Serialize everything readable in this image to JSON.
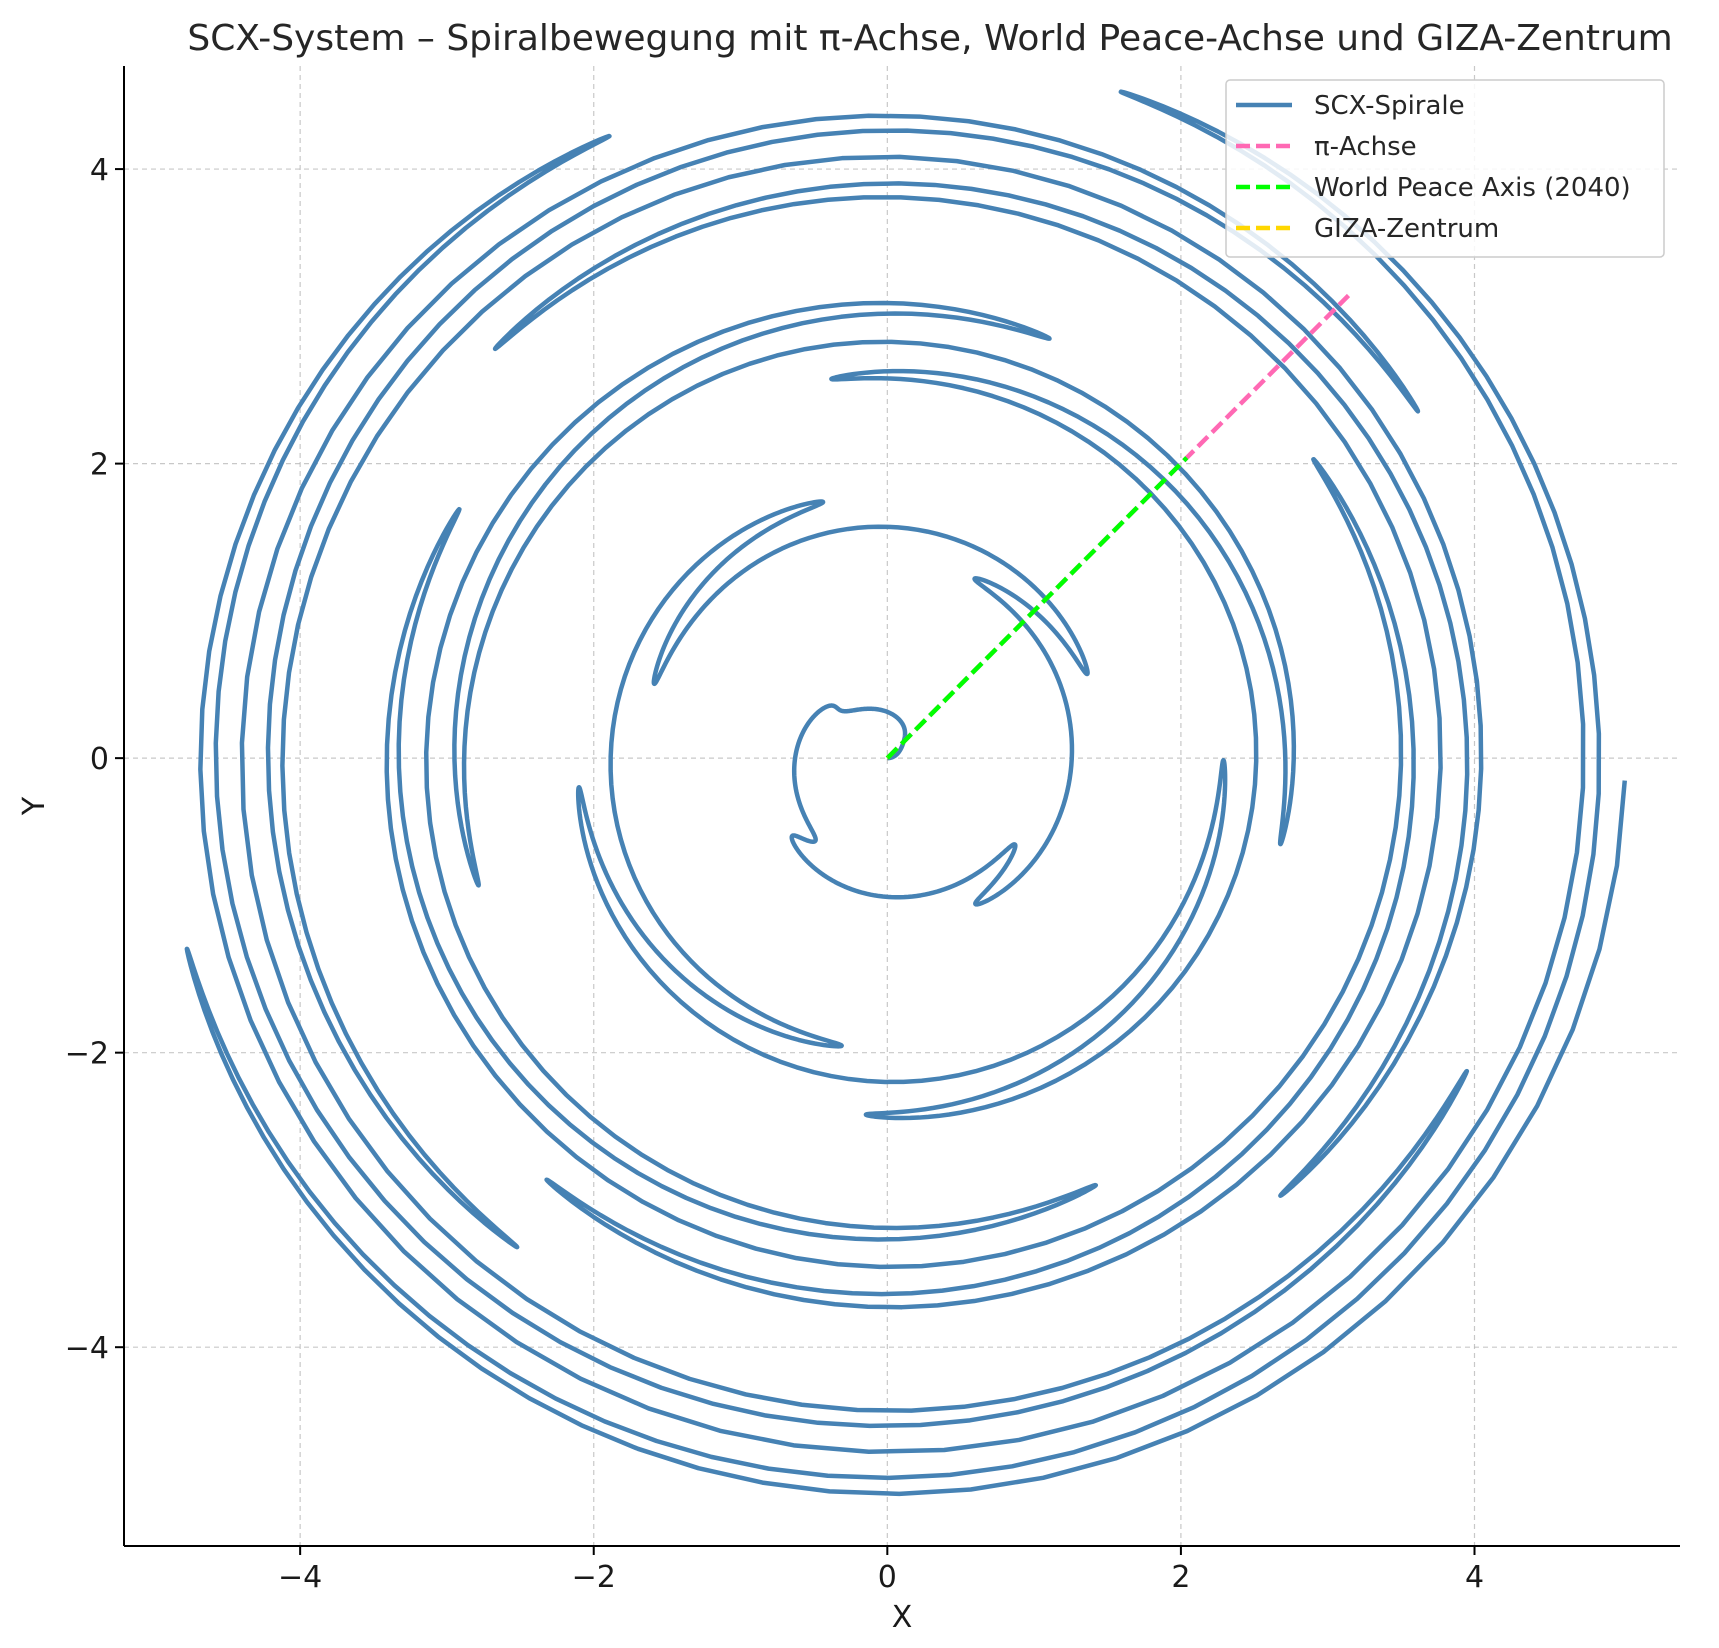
{
  "chart_data": {
    "type": "line",
    "title": "SCX-System – Spiralbewegung mit π-Achse, World Peace-Achse und GIZA-Zentrum",
    "xlabel": "X",
    "ylabel": "Y",
    "xlim": [
      -5.2,
      5.4
    ],
    "ylim": [
      -5.35,
      4.7
    ],
    "xticks": [
      -4,
      -2,
      0,
      2,
      4
    ],
    "yticks": [
      -4,
      -2,
      0,
      2,
      4
    ],
    "xtick_labels": [
      "−4",
      "−2",
      "0",
      "2",
      "4"
    ],
    "ytick_labels": [
      "−4",
      "−2",
      "0",
      "2",
      "4"
    ],
    "grid": true,
    "legend_position": "top-right",
    "spiral_formula": {
      "t_range": [
        0,
        25.13
      ],
      "radius_growth": 0.2,
      "wave_amplitude": 0.1,
      "wave_frequency": 4
    },
    "series": [
      {
        "name": "SCX-Spirale",
        "kind": "spiral",
        "color": "#4682b4",
        "dash": "solid"
      },
      {
        "name": "π-Achse",
        "kind": "segment",
        "color": "#ff69b4",
        "dash": "dashed",
        "x": [
          0,
          3.1416
        ],
        "y": [
          0,
          3.1416
        ]
      },
      {
        "name": "World Peace Axis (2040)",
        "kind": "segment",
        "color": "#00ff00",
        "dash": "dashed",
        "x": [
          0,
          2.04
        ],
        "y": [
          0,
          2.04
        ]
      },
      {
        "name": "GIZA-Zentrum",
        "kind": "segment",
        "color": "#ffd700",
        "dash": "dashed",
        "x": [
          0,
          0
        ],
        "y": [
          0,
          0
        ]
      }
    ]
  }
}
